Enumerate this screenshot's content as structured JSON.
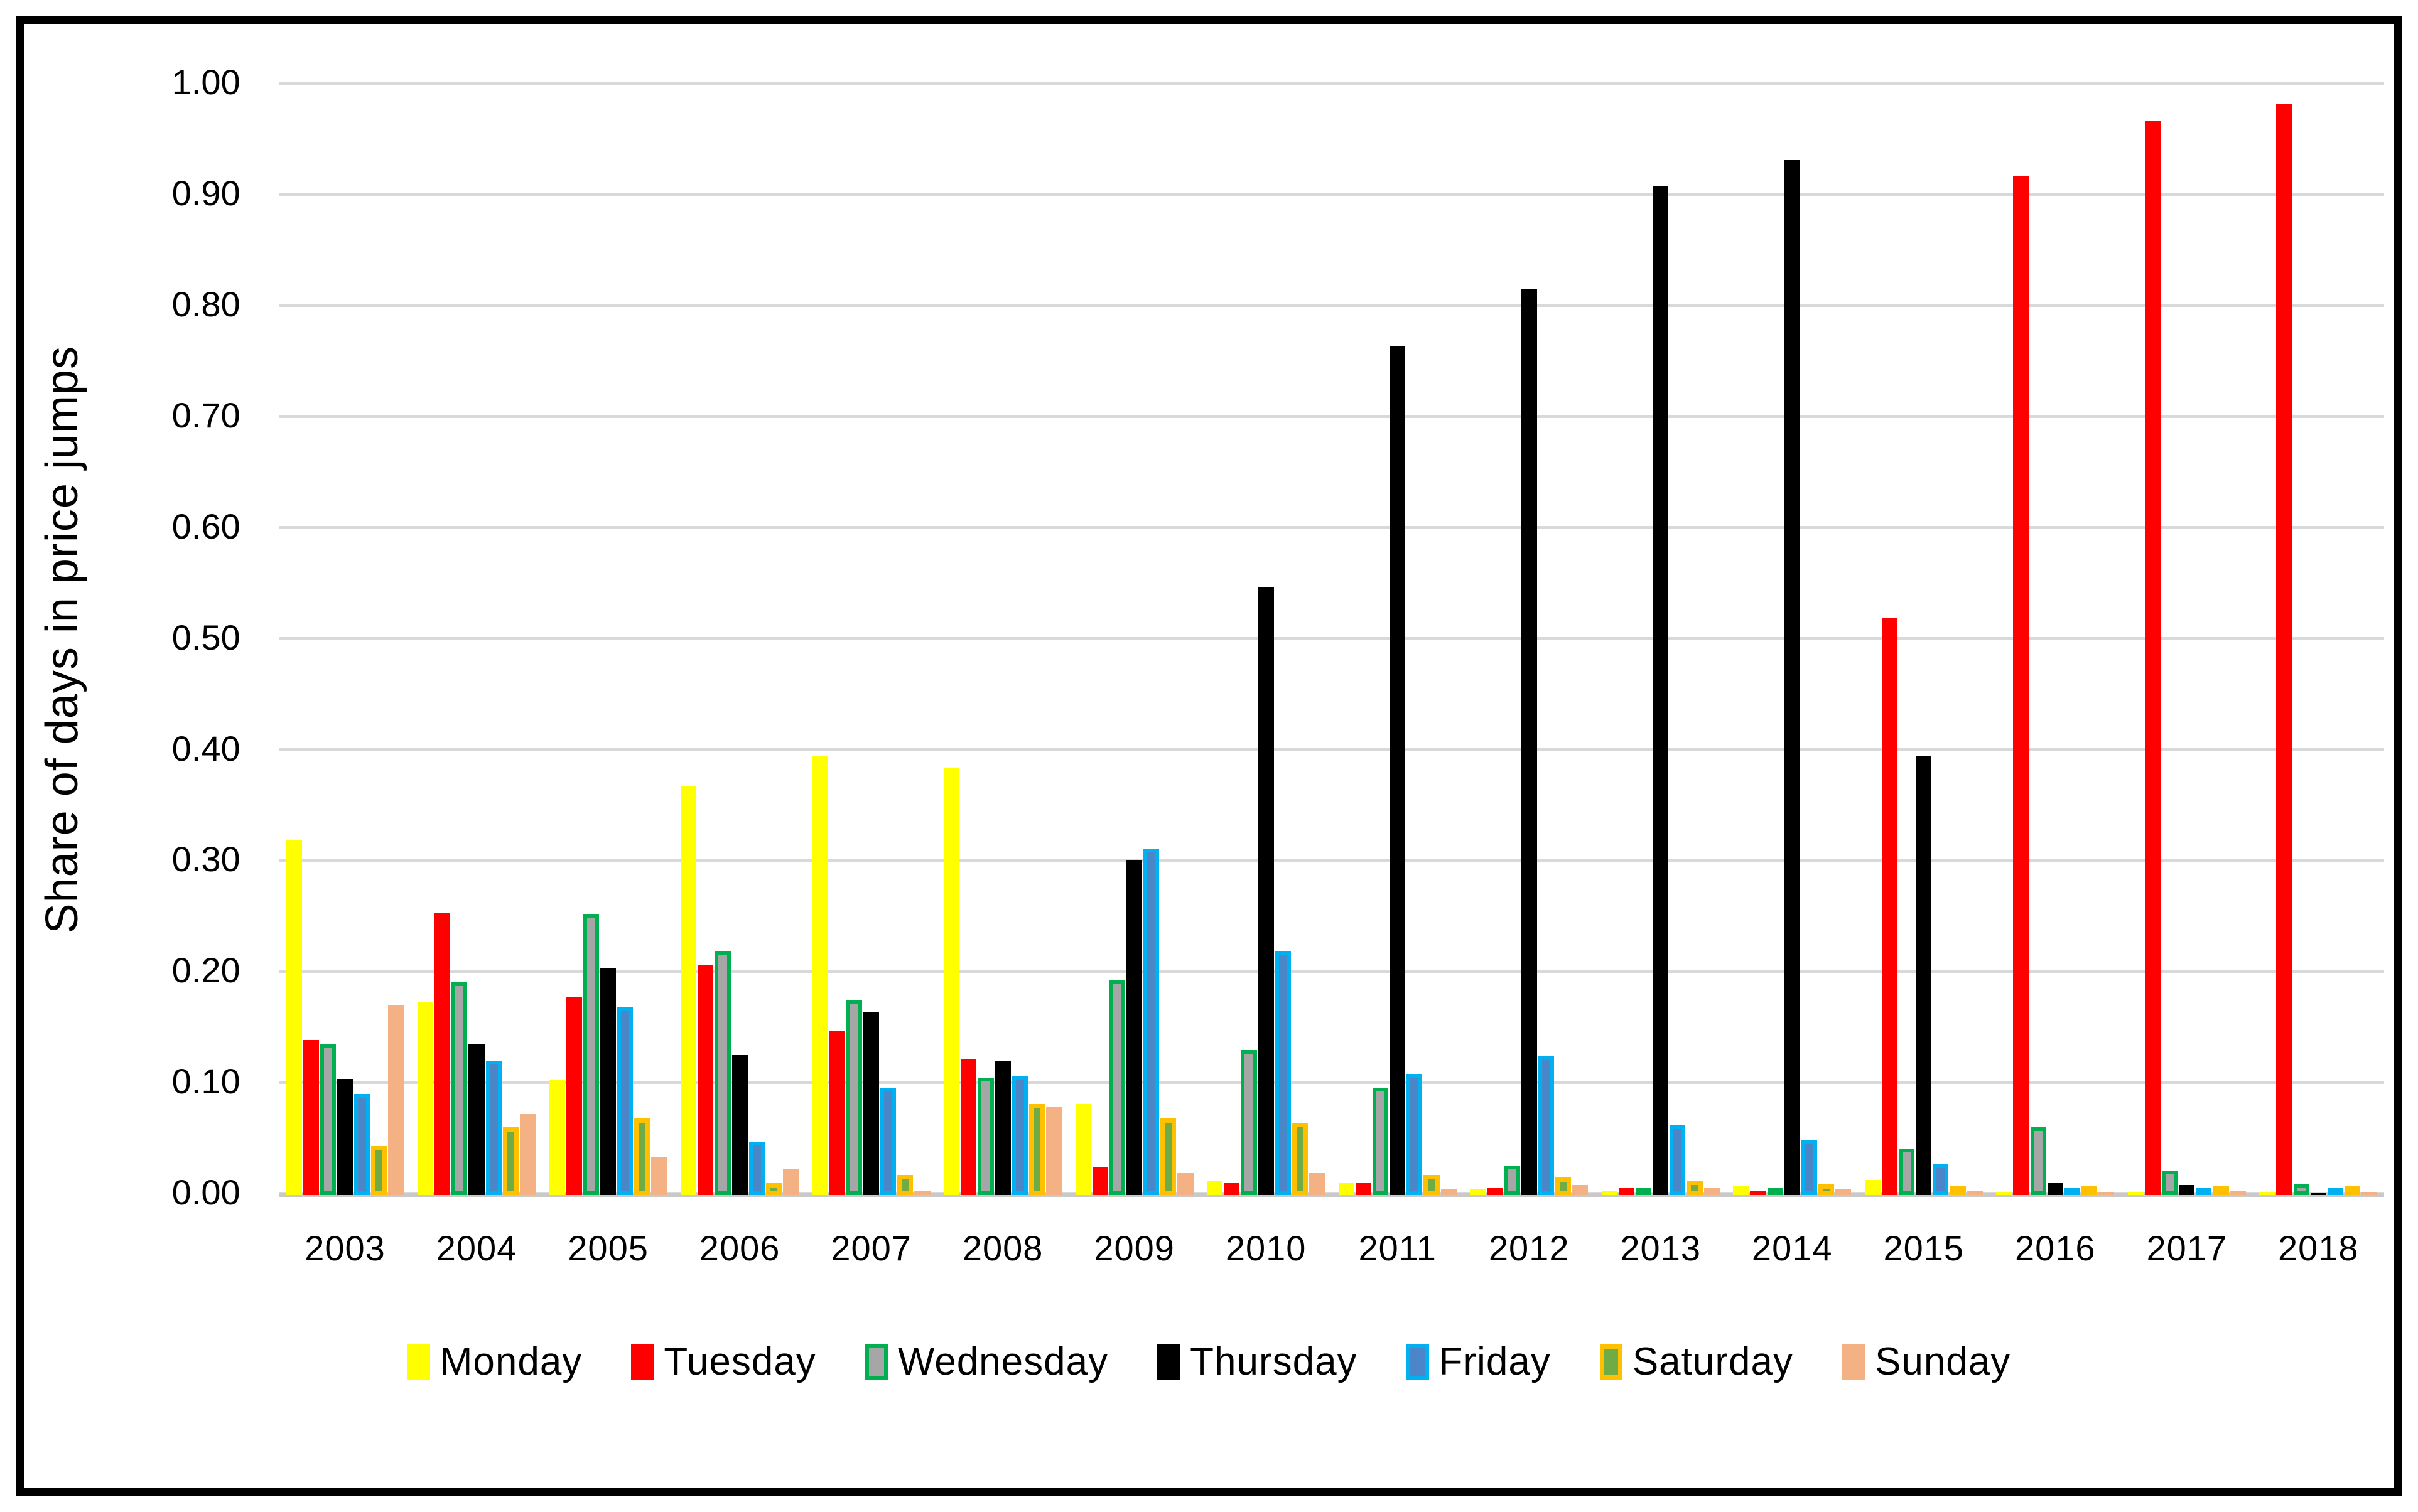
{
  "y_axis": {
    "title": "Share of days in price jumps",
    "tick_labels": [
      "0.00",
      "0.10",
      "0.20",
      "0.30",
      "0.40",
      "0.50",
      "0.60",
      "0.70",
      "0.80",
      "0.90",
      "1.00"
    ],
    "min": 0,
    "max": 1,
    "step": 0.1
  },
  "x_axis": {
    "labels": [
      "2003",
      "2004",
      "2005",
      "2006",
      "2007",
      "2008",
      "2009",
      "2010",
      "2011",
      "2012",
      "2013",
      "2014",
      "2015",
      "2016",
      "2017",
      "2018"
    ]
  },
  "colors": {
    "gridline": "#d9d9d9",
    "axis_line": "#c9c9c9",
    "frame_border": "#000000"
  },
  "chart_data": {
    "type": "bar",
    "title": "",
    "xlabel": "",
    "ylabel": "Share of days in price jumps",
    "ylim": [
      0,
      1
    ],
    "grid": true,
    "legend_position": "bottom",
    "categories": [
      "2003",
      "2004",
      "2005",
      "2006",
      "2007",
      "2008",
      "2009",
      "2010",
      "2011",
      "2012",
      "2013",
      "2014",
      "2015",
      "2016",
      "2017",
      "2018"
    ],
    "series": [
      {
        "name": "Monday",
        "fill": "#ffff00",
        "border_color": "#ffff00",
        "border_width": 0,
        "values": [
          0.32,
          0.174,
          0.104,
          0.368,
          0.395,
          0.385,
          0.082,
          0.013,
          0.011,
          0.006,
          0.004,
          0.008,
          0.014,
          0.003,
          0.003,
          0.003
        ]
      },
      {
        "name": "Tuesday",
        "fill": "#ff0000",
        "border_color": "#ff0000",
        "border_width": 0,
        "values": [
          0.14,
          0.254,
          0.178,
          0.207,
          0.148,
          0.122,
          0.025,
          0.011,
          0.011,
          0.007,
          0.007,
          0.004,
          0.52,
          0.918,
          0.968,
          0.983
        ]
      },
      {
        "name": "Wednesday",
        "fill": "#a6a6a6",
        "border_color": "#00b050",
        "border_width": 6,
        "values": [
          0.136,
          0.192,
          0.253,
          0.22,
          0.176,
          0.106,
          0.194,
          0.131,
          0.097,
          0.027,
          0.004,
          0.004,
          0.042,
          0.061,
          0.022,
          0.01
        ]
      },
      {
        "name": "Thursday",
        "fill": "#000000",
        "border_color": "#000000",
        "border_width": 0,
        "values": [
          0.105,
          0.136,
          0.204,
          0.126,
          0.165,
          0.121,
          0.302,
          0.547,
          0.764,
          0.816,
          0.909,
          0.932,
          0.395,
          0.011,
          0.009,
          0.002
        ]
      },
      {
        "name": "Friday",
        "fill": "#4a86c8",
        "border_color": "#00b0f0",
        "border_width": 6,
        "values": [
          0.091,
          0.121,
          0.169,
          0.048,
          0.097,
          0.107,
          0.312,
          0.22,
          0.109,
          0.125,
          0.063,
          0.05,
          0.028,
          0.005,
          0.003,
          0.004
        ]
      },
      {
        "name": "Saturday",
        "fill": "#6fac46",
        "border_color": "#ffc000",
        "border_width": 7,
        "values": [
          0.044,
          0.061,
          0.069,
          0.011,
          0.018,
          0.082,
          0.069,
          0.065,
          0.018,
          0.016,
          0.013,
          0.01,
          0.007,
          0.004,
          0.004,
          0.004
        ]
      },
      {
        "name": "Sunday",
        "fill": "#f4b183",
        "border_color": "#f4b183",
        "border_width": 0,
        "values": [
          0.171,
          0.073,
          0.034,
          0.024,
          0.004,
          0.08,
          0.02,
          0.02,
          0.005,
          0.009,
          0.007,
          0.005,
          0.004,
          0.003,
          0.004,
          0.003
        ]
      }
    ]
  }
}
